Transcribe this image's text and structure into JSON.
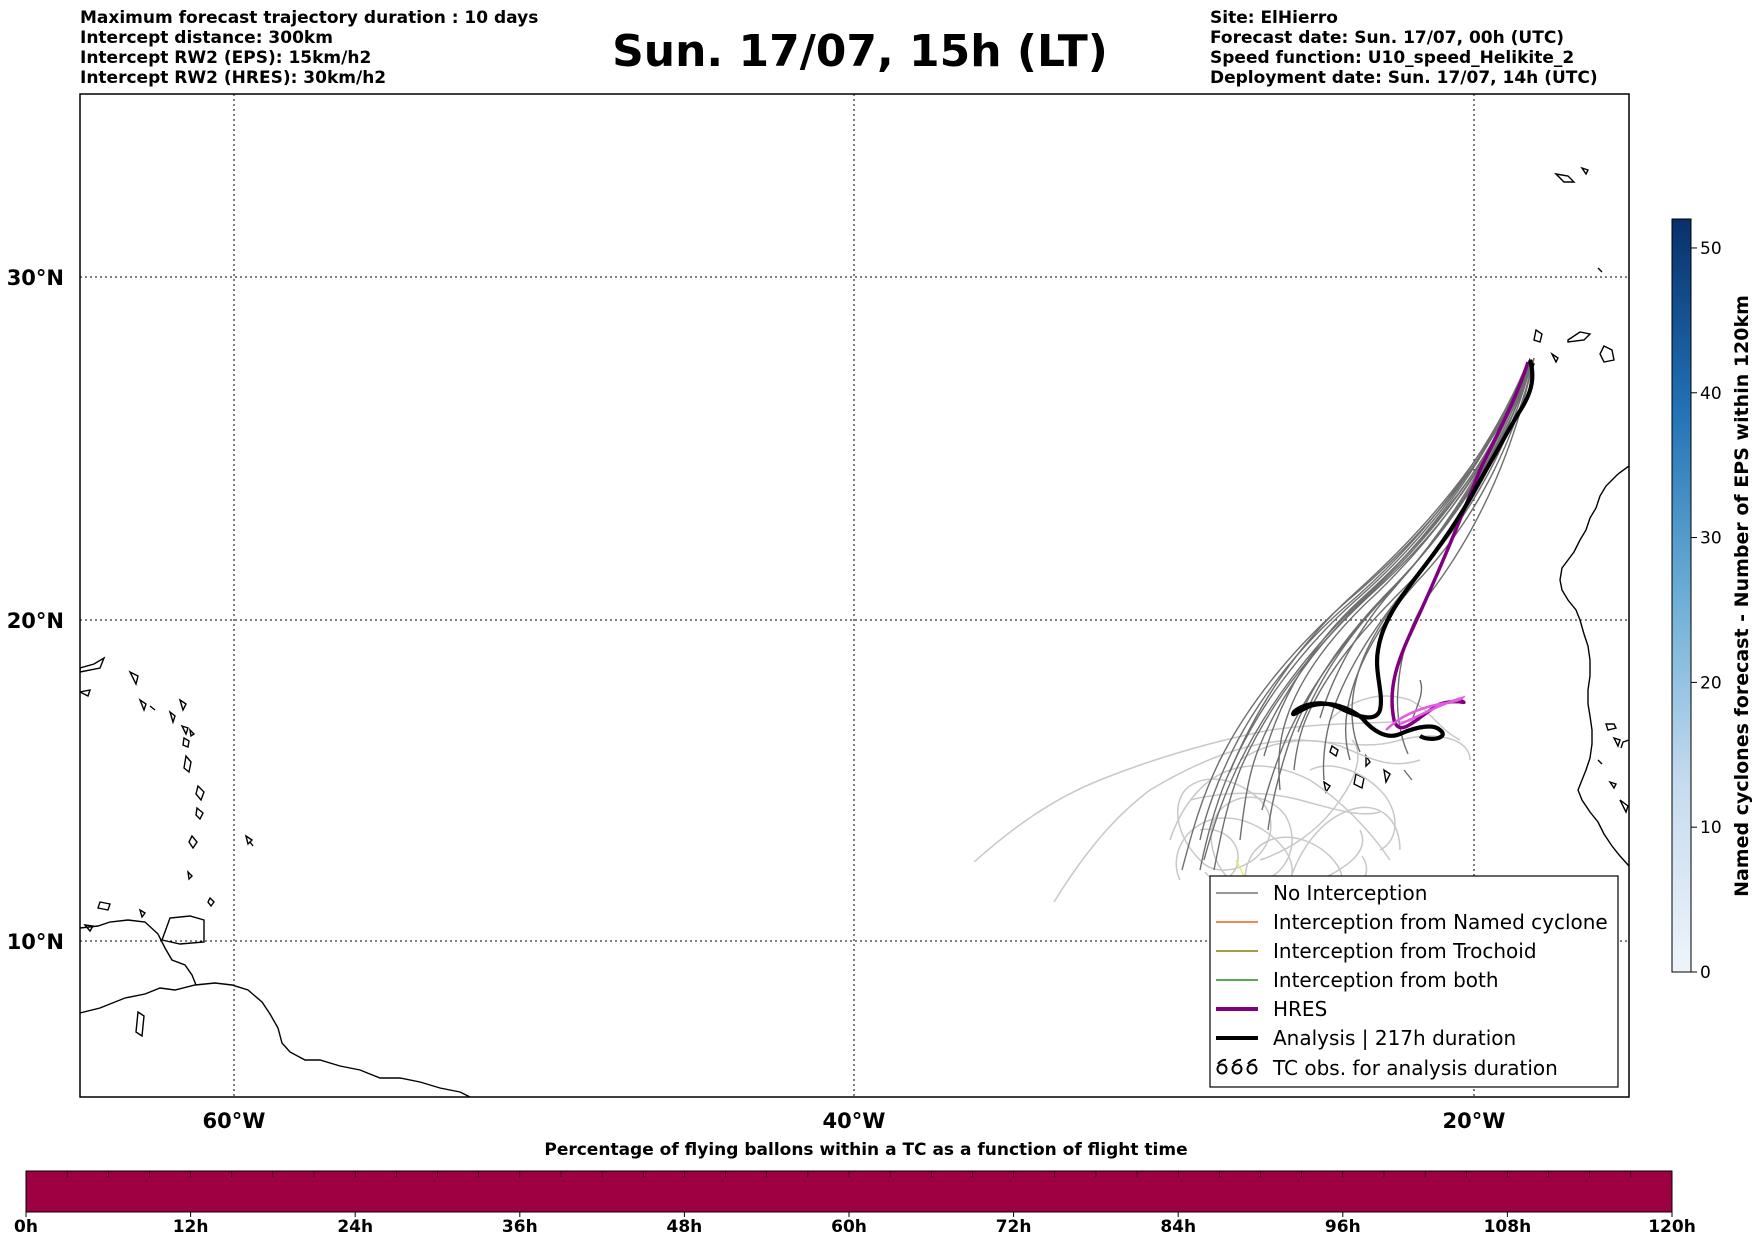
{
  "header_left": [
    "Maximum forecast trajectory duration : 10 days",
    "Intercept distance: 300km",
    "Intercept RW2 (EPS):  15km/h2",
    "Intercept RW2 (HRES): 30km/h2"
  ],
  "title": "Sun. 17/07, 15h (LT)",
  "header_right": [
    "Site: ElHierro",
    "Forecast date: Sun. 17/07, 00h (UTC)",
    "Speed function: U10_speed_Helikite_2",
    "Deployment date: Sun. 17/07, 14h (UTC)"
  ],
  "map": {
    "lat_labels": [
      "30°N",
      "20°N",
      "10°N"
    ],
    "lon_labels": [
      "60°W",
      "40°W",
      "20°W"
    ]
  },
  "legend": {
    "items": [
      {
        "label": "No Interception",
        "color": "#777777"
      },
      {
        "label": "Interception from Named cyclone",
        "color": "#e8602c"
      },
      {
        "label": "Interception from Trochoid",
        "color": "#808000"
      },
      {
        "label": "Interception from both",
        "color": "#228b22"
      },
      {
        "label": "HRES",
        "color": "#800080"
      },
      {
        "label": "Analysis | 217h duration",
        "color": "#000000"
      },
      {
        "label": "TC obs. for analysis duration",
        "color": "#000000",
        "icon": "cyclone-symbols-icon"
      }
    ]
  },
  "colorbar_right": {
    "label": "Named cyclones forecast - Number of EPS within 120km",
    "ticks": [
      "0",
      "10",
      "20",
      "30",
      "40",
      "50"
    ],
    "range": [
      0,
      52
    ]
  },
  "colorbar_bottom": {
    "title": "Percentage of flying ballons within a TC as a function of flight time",
    "ticks": [
      "0h",
      "12h",
      "24h",
      "36h",
      "48h",
      "60h",
      "72h",
      "84h",
      "96h",
      "108h",
      "120h"
    ],
    "fill_color": "#9e0142"
  }
}
